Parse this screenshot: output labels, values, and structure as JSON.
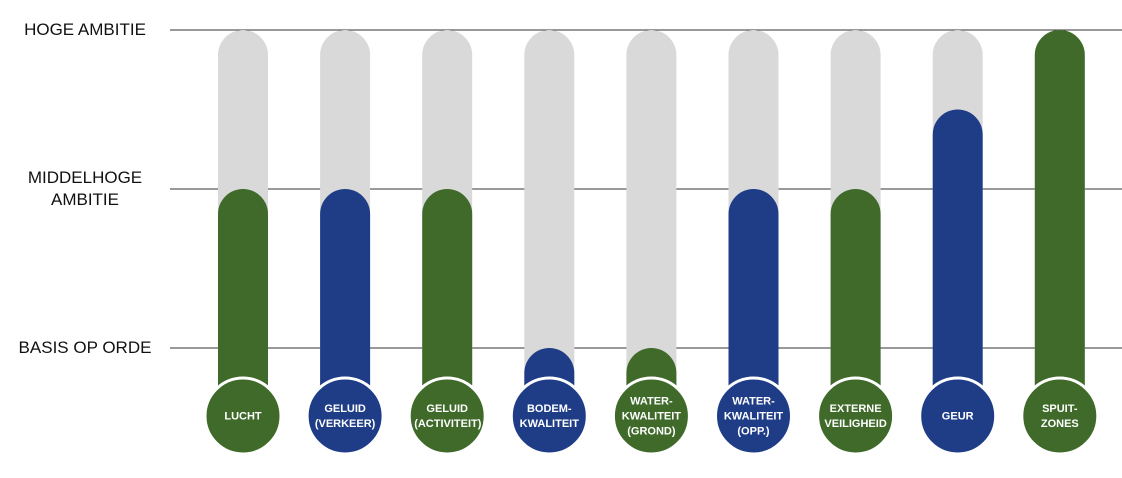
{
  "chart_data": {
    "type": "bar",
    "categories": [
      "LUCHT",
      "GELUID (VERKEER)",
      "GELUID (ACTIVITEIT)",
      "BODEM-KWALITEIT",
      "WATER-KWALITEIT (GROND)",
      "WATER-KWALITEIT (OPP.)",
      "EXTERNE VEILIGHEID",
      "GEUR",
      "SPUIT-ZONES"
    ],
    "values": [
      2,
      2,
      2,
      1,
      1,
      2,
      2,
      2.5,
      3
    ],
    "colors": [
      "#3f6a2a",
      "#1f3d87",
      "#3f6a2a",
      "#1f3d87",
      "#3f6a2a",
      "#1f3d87",
      "#3f6a2a",
      "#1f3d87",
      "#3f6a2a"
    ],
    "track_color": "#d9d9d9",
    "ylim": [
      1,
      3
    ],
    "yticks": [
      {
        "value": 1,
        "label": "BASIS OP ORDE"
      },
      {
        "value": 2,
        "label": "MIDDELHOGE AMBITIE"
      },
      {
        "value": 3,
        "label": "HOGE AMBITIE"
      }
    ],
    "grid": true
  }
}
